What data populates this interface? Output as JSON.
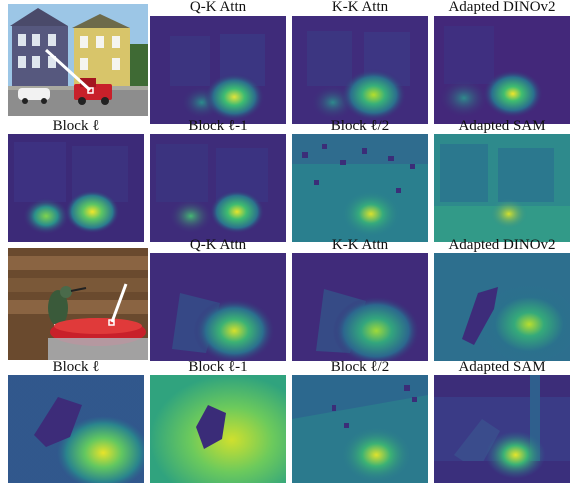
{
  "figure": {
    "rows": [
      {
        "labels": [
          "",
          "Q-K Attn",
          "K-K Attn",
          "Adapted DINOv2"
        ]
      },
      {
        "labels": [
          "Block ℓ",
          "Block ℓ-1",
          "Block ℓ/2",
          "Adapted SAM"
        ]
      },
      {
        "labels": [
          "",
          "Q-K Attn",
          "K-K Attn",
          "Adapted DINOv2"
        ]
      },
      {
        "labels": [
          "Block ℓ",
          "Block ℓ-1",
          "Block ℓ/2",
          "Adapted SAM"
        ]
      }
    ],
    "photos": [
      {
        "subject": "houses street with red truck",
        "name": "street-photo"
      },
      {
        "subject": "hummingbird at feeder",
        "name": "hummingbird-photo"
      }
    ]
  },
  "colors": {
    "map_low": "#3d2b7a",
    "map_mid": "#2a8d8c",
    "map_high": "#f1e52a"
  }
}
